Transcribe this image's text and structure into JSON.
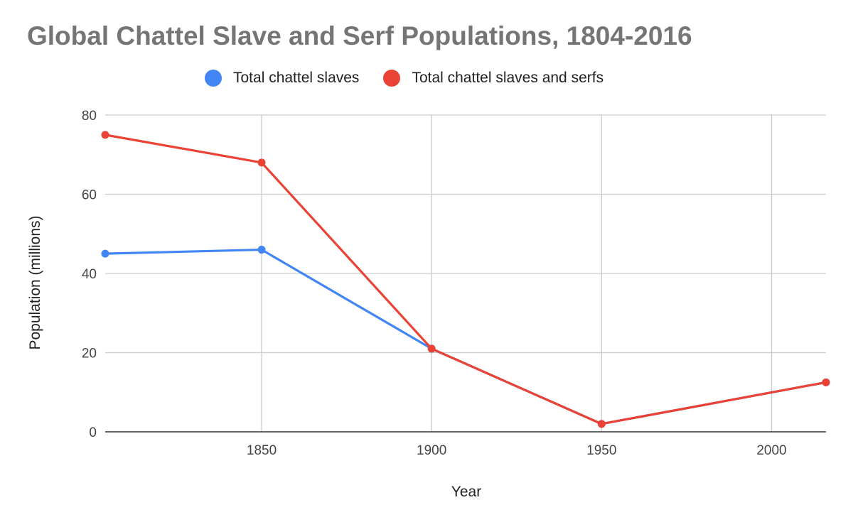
{
  "chart_data": {
    "type": "line",
    "title": "Global Chattel Slave and Serf Populations, 1804-2016",
    "xlabel": "Year",
    "ylabel": "Population (millions)",
    "xlim": [
      1804,
      2016
    ],
    "ylim": [
      0,
      80
    ],
    "x_ticks": [
      1850,
      1900,
      1950,
      2000
    ],
    "y_ticks": [
      0,
      20,
      40,
      60,
      80
    ],
    "x_tick_labels": [
      "1850",
      "1900",
      "1950",
      "2000"
    ],
    "y_tick_labels": [
      "0",
      "20",
      "40",
      "60",
      "80"
    ],
    "grid": true,
    "legend_position": "top",
    "series": [
      {
        "name": "Total chattel slaves",
        "color": "#4285f4",
        "x": [
          1804,
          1850,
          1900,
          1950,
          2016
        ],
        "values": [
          45,
          46,
          21,
          2,
          12.5
        ]
      },
      {
        "name": "Total chattel slaves and serfs",
        "color": "#ea4335",
        "x": [
          1804,
          1850,
          1900,
          1950,
          2016
        ],
        "values": [
          75,
          68,
          21,
          2,
          12.5
        ]
      }
    ]
  }
}
